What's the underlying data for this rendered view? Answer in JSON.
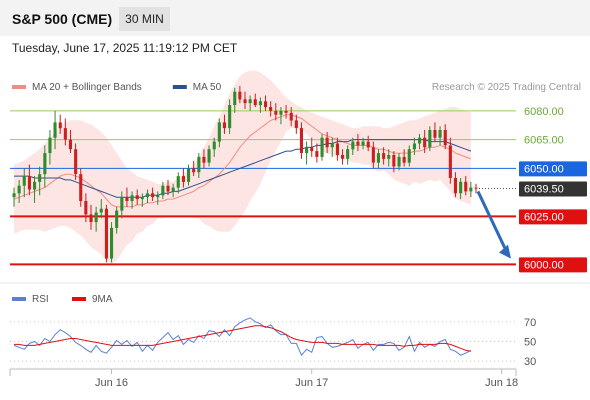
{
  "header": {
    "title": "S&P 500 (CME)",
    "timeframe": "30 MIN",
    "datetime": "Tuesday, June 17, 2025 11:19:12 PM CET"
  },
  "chart_data": [
    {
      "type": "candlestick",
      "legend": [
        {
          "label": "MA 20 + Bollinger Bands",
          "color": "#f28b82"
        },
        {
          "label": "MA 50",
          "color": "#2f4f8f"
        }
      ],
      "credit": "Research © 2025 Trading Central",
      "ylim": [
        5996,
        6094
      ],
      "current_price": {
        "label": "6039.50",
        "value": 6039.5
      },
      "levels": [
        {
          "label": "6080.00",
          "value": 6080,
          "kind": "resistance",
          "color": "#92d050"
        },
        {
          "label": "6065.00",
          "value": 6065,
          "kind": "resistance",
          "color": "#92d050"
        },
        {
          "label": "6050.00",
          "value": 6050,
          "kind": "pivot",
          "color": "#1a66e0"
        },
        {
          "label": "6025.00",
          "value": 6025,
          "kind": "support",
          "color": "#e01010"
        },
        {
          "label": "6000.00",
          "value": 6000,
          "kind": "support",
          "color": "#e01010"
        }
      ],
      "projection": {
        "from": 6038,
        "to": 6003
      },
      "candles": [
        {
          "o": 6035,
          "h": 6040,
          "l": 6030,
          "c": 6037
        },
        {
          "o": 6037,
          "h": 6044,
          "l": 6032,
          "c": 6041
        },
        {
          "o": 6041,
          "h": 6050,
          "l": 6035,
          "c": 6046
        },
        {
          "o": 6046,
          "h": 6052,
          "l": 6036,
          "c": 6039
        },
        {
          "o": 6039,
          "h": 6046,
          "l": 6032,
          "c": 6043
        },
        {
          "o": 6043,
          "h": 6051,
          "l": 6036,
          "c": 6047
        },
        {
          "o": 6047,
          "h": 6062,
          "l": 6040,
          "c": 6058
        },
        {
          "o": 6058,
          "h": 6070,
          "l": 6052,
          "c": 6066
        },
        {
          "o": 6066,
          "h": 6080,
          "l": 6060,
          "c": 6074
        },
        {
          "o": 6074,
          "h": 6078,
          "l": 6068,
          "c": 6071
        },
        {
          "o": 6071,
          "h": 6076,
          "l": 6062,
          "c": 6065
        },
        {
          "o": 6065,
          "h": 6070,
          "l": 6058,
          "c": 6060
        },
        {
          "o": 6060,
          "h": 6063,
          "l": 6044,
          "c": 6047
        },
        {
          "o": 6047,
          "h": 6050,
          "l": 6030,
          "c": 6033
        },
        {
          "o": 6033,
          "h": 6037,
          "l": 6022,
          "c": 6026
        },
        {
          "o": 6026,
          "h": 6031,
          "l": 6018,
          "c": 6022
        },
        {
          "o": 6022,
          "h": 6030,
          "l": 6017,
          "c": 6027
        },
        {
          "o": 6027,
          "h": 6034,
          "l": 6024,
          "c": 6029
        },
        {
          "o": 6029,
          "h": 6031,
          "l": 6001,
          "c": 6003
        },
        {
          "o": 6003,
          "h": 6022,
          "l": 6001,
          "c": 6019
        },
        {
          "o": 6019,
          "h": 6030,
          "l": 6016,
          "c": 6028
        },
        {
          "o": 6028,
          "h": 6038,
          "l": 6024,
          "c": 6035
        },
        {
          "o": 6035,
          "h": 6040,
          "l": 6030,
          "c": 6033
        },
        {
          "o": 6033,
          "h": 6038,
          "l": 6029,
          "c": 6036
        },
        {
          "o": 6036,
          "h": 6039,
          "l": 6031,
          "c": 6034
        },
        {
          "o": 6034,
          "h": 6037,
          "l": 6030,
          "c": 6035
        },
        {
          "o": 6035,
          "h": 6039,
          "l": 6032,
          "c": 6037
        },
        {
          "o": 6037,
          "h": 6040,
          "l": 6033,
          "c": 6035
        },
        {
          "o": 6035,
          "h": 6038,
          "l": 6031,
          "c": 6036
        },
        {
          "o": 6036,
          "h": 6043,
          "l": 6034,
          "c": 6041
        },
        {
          "o": 6041,
          "h": 6044,
          "l": 6036,
          "c": 6038
        },
        {
          "o": 6038,
          "h": 6042,
          "l": 6035,
          "c": 6040
        },
        {
          "o": 6040,
          "h": 6048,
          "l": 6037,
          "c": 6046
        },
        {
          "o": 6046,
          "h": 6050,
          "l": 6040,
          "c": 6043
        },
        {
          "o": 6043,
          "h": 6052,
          "l": 6041,
          "c": 6050
        },
        {
          "o": 6050,
          "h": 6054,
          "l": 6046,
          "c": 6048
        },
        {
          "o": 6048,
          "h": 6058,
          "l": 6045,
          "c": 6056
        },
        {
          "o": 6056,
          "h": 6060,
          "l": 6050,
          "c": 6053
        },
        {
          "o": 6053,
          "h": 6062,
          "l": 6051,
          "c": 6060
        },
        {
          "o": 6060,
          "h": 6066,
          "l": 6056,
          "c": 6064
        },
        {
          "o": 6064,
          "h": 6076,
          "l": 6061,
          "c": 6074
        },
        {
          "o": 6074,
          "h": 6078,
          "l": 6068,
          "c": 6071
        },
        {
          "o": 6071,
          "h": 6086,
          "l": 6068,
          "c": 6083
        },
        {
          "o": 6083,
          "h": 6092,
          "l": 6079,
          "c": 6090
        },
        {
          "o": 6090,
          "h": 6093,
          "l": 6084,
          "c": 6086
        },
        {
          "o": 6086,
          "h": 6090,
          "l": 6081,
          "c": 6084
        },
        {
          "o": 6084,
          "h": 6088,
          "l": 6080,
          "c": 6086
        },
        {
          "o": 6086,
          "h": 6089,
          "l": 6082,
          "c": 6083
        },
        {
          "o": 6083,
          "h": 6087,
          "l": 6079,
          "c": 6085
        },
        {
          "o": 6085,
          "h": 6088,
          "l": 6080,
          "c": 6082
        },
        {
          "o": 6082,
          "h": 6085,
          "l": 6077,
          "c": 6080
        },
        {
          "o": 6080,
          "h": 6084,
          "l": 6075,
          "c": 6078
        },
        {
          "o": 6078,
          "h": 6082,
          "l": 6073,
          "c": 6080
        },
        {
          "o": 6080,
          "h": 6083,
          "l": 6076,
          "c": 6079
        },
        {
          "o": 6079,
          "h": 6082,
          "l": 6072,
          "c": 6075
        },
        {
          "o": 6075,
          "h": 6078,
          "l": 6068,
          "c": 6071
        },
        {
          "o": 6071,
          "h": 6074,
          "l": 6055,
          "c": 6058
        },
        {
          "o": 6058,
          "h": 6064,
          "l": 6052,
          "c": 6061
        },
        {
          "o": 6061,
          "h": 6066,
          "l": 6056,
          "c": 6059
        },
        {
          "o": 6059,
          "h": 6063,
          "l": 6053,
          "c": 6056
        },
        {
          "o": 6056,
          "h": 6068,
          "l": 6054,
          "c": 6066
        },
        {
          "o": 6066,
          "h": 6069,
          "l": 6058,
          "c": 6061
        },
        {
          "o": 6061,
          "h": 6066,
          "l": 6056,
          "c": 6063
        },
        {
          "o": 6063,
          "h": 6066,
          "l": 6054,
          "c": 6057
        },
        {
          "o": 6057,
          "h": 6060,
          "l": 6052,
          "c": 6055
        },
        {
          "o": 6055,
          "h": 6062,
          "l": 6052,
          "c": 6060
        },
        {
          "o": 6060,
          "h": 6066,
          "l": 6057,
          "c": 6064
        },
        {
          "o": 6064,
          "h": 6068,
          "l": 6059,
          "c": 6062
        },
        {
          "o": 6062,
          "h": 6066,
          "l": 6060,
          "c": 6064
        },
        {
          "o": 6064,
          "h": 6067,
          "l": 6059,
          "c": 6061
        },
        {
          "o": 6061,
          "h": 6064,
          "l": 6050,
          "c": 6053
        },
        {
          "o": 6053,
          "h": 6060,
          "l": 6050,
          "c": 6058
        },
        {
          "o": 6058,
          "h": 6061,
          "l": 6052,
          "c": 6055
        },
        {
          "o": 6055,
          "h": 6060,
          "l": 6051,
          "c": 6057
        },
        {
          "o": 6057,
          "h": 6059,
          "l": 6048,
          "c": 6051
        },
        {
          "o": 6051,
          "h": 6058,
          "l": 6049,
          "c": 6056
        },
        {
          "o": 6056,
          "h": 6060,
          "l": 6051,
          "c": 6053
        },
        {
          "o": 6053,
          "h": 6062,
          "l": 6051,
          "c": 6060
        },
        {
          "o": 6060,
          "h": 6066,
          "l": 6057,
          "c": 6063
        },
        {
          "o": 6063,
          "h": 6068,
          "l": 6060,
          "c": 6066
        },
        {
          "o": 6066,
          "h": 6070,
          "l": 6058,
          "c": 6061
        },
        {
          "o": 6061,
          "h": 6072,
          "l": 6059,
          "c": 6070
        },
        {
          "o": 6070,
          "h": 6074,
          "l": 6064,
          "c": 6066
        },
        {
          "o": 6066,
          "h": 6072,
          "l": 6062,
          "c": 6070
        },
        {
          "o": 6070,
          "h": 6073,
          "l": 6060,
          "c": 6062
        },
        {
          "o": 6062,
          "h": 6066,
          "l": 6042,
          "c": 6045
        },
        {
          "o": 6045,
          "h": 6048,
          "l": 6035,
          "c": 6037
        },
        {
          "o": 6037,
          "h": 6045,
          "l": 6034,
          "c": 6043
        },
        {
          "o": 6043,
          "h": 6046,
          "l": 6036,
          "c": 6038
        },
        {
          "o": 6038,
          "h": 6043,
          "l": 6035,
          "c": 6040
        },
        {
          "o": 6040,
          "h": 6042,
          "l": 6037,
          "c": 6039.5
        }
      ],
      "ma20": [
        6034,
        6035,
        6036,
        6037,
        6038,
        6039,
        6040,
        6042,
        6044,
        6046,
        6047,
        6047,
        6046,
        6045,
        6043,
        6041,
        6039,
        6037,
        6034,
        6031,
        6030,
        6030,
        6030,
        6030,
        6031,
        6031,
        6032,
        6032,
        6033,
        6033,
        6034,
        6034,
        6035,
        6036,
        6037,
        6038,
        6040,
        6041,
        6043,
        6045,
        6047,
        6050,
        6053,
        6057,
        6061,
        6064,
        6067,
        6069,
        6071,
        6073,
        6075,
        6076,
        6077,
        6078,
        6078,
        6077,
        6076,
        6074,
        6072,
        6070,
        6068,
        6067,
        6066,
        6065,
        6064,
        6063,
        6062,
        6062,
        6062,
        6062,
        6061,
        6060,
        6060,
        6059,
        6058,
        6058,
        6058,
        6058,
        6059,
        6059,
        6060,
        6061,
        6061,
        6062,
        6061,
        6060,
        6058,
        6057,
        6056,
        6055
      ],
      "ma50": [
        6046,
        6046,
        6046,
        6046,
        6045,
        6045,
        6045,
        6045,
        6045,
        6045,
        6044,
        6044,
        6043,
        6042,
        6041,
        6040,
        6039,
        6038,
        6037,
        6036,
        6035,
        6035,
        6035,
        6035,
        6035,
        6035,
        6036,
        6036,
        6036,
        6037,
        6037,
        6038,
        6038,
        6039,
        6040,
        6041,
        6042,
        6043,
        6044,
        6045,
        6046,
        6047,
        6048,
        6049,
        6050,
        6051,
        6052,
        6053,
        6054,
        6055,
        6056,
        6057,
        6058,
        6059,
        6059,
        6060,
        6060,
        6061,
        6061,
        6062,
        6062,
        6063,
        6063,
        6064,
        6064,
        6064,
        6065,
        6065,
        6065,
        6065,
        6065,
        6065,
        6065,
        6065,
        6065,
        6065,
        6065,
        6065,
        6065,
        6065,
        6065,
        6064,
        6064,
        6064,
        6064,
        6063,
        6062,
        6061,
        6060,
        6059
      ],
      "bb_upper": [
        6052,
        6053,
        6054,
        6056,
        6058,
        6060,
        6063,
        6066,
        6069,
        6072,
        6074,
        6075,
        6075,
        6075,
        6074,
        6073,
        6071,
        6069,
        6066,
        6062,
        6058,
        6054,
        6050,
        6048,
        6046,
        6045,
        6044,
        6043,
        6042,
        6042,
        6043,
        6043,
        6045,
        6047,
        6049,
        6052,
        6056,
        6061,
        6066,
        6072,
        6077,
        6083,
        6089,
        6094,
        6098,
        6100,
        6101,
        6101,
        6100,
        6098,
        6096,
        6093,
        6090,
        6087,
        6085,
        6083,
        6082,
        6080,
        6079,
        6078,
        6077,
        6076,
        6075,
        6074,
        6073,
        6072,
        6071,
        6071,
        6072,
        6072,
        6072,
        6072,
        6071,
        6071,
        6072,
        6073,
        6074,
        6075,
        6075,
        6076,
        6077,
        6078,
        6079,
        6080,
        6081,
        6082,
        6082,
        6081,
        6080,
        6079
      ],
      "bb_lower": [
        6016,
        6017,
        6018,
        6018,
        6018,
        6018,
        6017,
        6018,
        6019,
        6020,
        6020,
        6019,
        6017,
        6015,
        6012,
        6009,
        6007,
        6005,
        6002,
        6000,
        6002,
        6006,
        6010,
        6012,
        6016,
        6017,
        6020,
        6021,
        6024,
        6024,
        6025,
        6025,
        6025,
        6025,
        6025,
        6024,
        6024,
        6021,
        6020,
        6018,
        6017,
        6017,
        6017,
        6020,
        6024,
        6028,
        6033,
        6037,
        6042,
        6048,
        6054,
        6059,
        6064,
        6069,
        6071,
        6071,
        6070,
        6068,
        6065,
        6062,
        6059,
        6058,
        6057,
        6056,
        6055,
        6054,
        6053,
        6053,
        6052,
        6052,
        6050,
        6048,
        6049,
        6047,
        6044,
        6043,
        6042,
        6041,
        6043,
        6042,
        6043,
        6044,
        6043,
        6044,
        6041,
        6038,
        6034,
        6033,
        6032,
        6031
      ],
      "x_ticks": [
        {
          "label": "Jun 16",
          "index": 19
        },
        {
          "label": "Jun 17",
          "index": 58
        },
        {
          "label": "Jun 18",
          "index": 95
        }
      ]
    },
    {
      "type": "line",
      "legend": [
        {
          "label": "RSI",
          "color": "#5b7fd6"
        },
        {
          "label": "9MA",
          "color": "#e01010"
        }
      ],
      "ylim": [
        25,
        80
      ],
      "yticks": [
        70,
        50,
        30
      ],
      "series": [
        {
          "name": "RSI",
          "color": "#5b7fd6",
          "values": [
            46,
            44,
            42,
            48,
            50,
            46,
            53,
            50,
            57,
            62,
            59,
            55,
            49,
            46,
            42,
            39,
            46,
            40,
            38,
            44,
            51,
            47,
            51,
            45,
            49,
            40,
            46,
            41,
            49,
            54,
            59,
            52,
            56,
            47,
            52,
            49,
            56,
            53,
            61,
            60,
            55,
            62,
            56,
            65,
            69,
            72,
            74,
            70,
            68,
            64,
            67,
            61,
            57,
            57,
            48,
            48,
            36,
            42,
            39,
            54,
            55,
            48,
            44,
            45,
            47,
            49,
            52,
            43,
            47,
            49,
            41,
            47,
            47,
            49,
            48,
            41,
            44,
            55,
            40,
            49,
            44,
            47,
            45,
            50,
            52,
            42,
            40,
            36,
            38,
            41
          ]
        },
        {
          "name": "9MA",
          "color": "#e01010",
          "values": [
            47,
            47,
            46,
            46,
            46,
            47,
            48,
            49,
            50,
            51,
            52,
            53,
            53,
            52,
            51,
            50,
            49,
            48,
            47,
            46,
            46,
            46,
            46,
            46,
            46,
            46,
            46,
            46,
            47,
            48,
            49,
            50,
            51,
            52,
            53,
            54,
            55,
            56,
            57,
            58,
            59,
            60,
            61,
            62,
            63,
            64,
            65,
            66,
            66,
            65,
            64,
            62,
            60,
            57,
            54,
            52,
            51,
            50,
            49,
            49,
            49,
            48,
            48,
            48,
            47,
            47,
            47,
            47,
            47,
            47,
            47,
            46,
            46,
            46,
            46,
            46,
            45,
            46,
            46,
            47,
            47,
            47,
            47,
            48,
            48,
            47,
            45,
            43,
            41,
            40
          ]
        }
      ]
    }
  ]
}
